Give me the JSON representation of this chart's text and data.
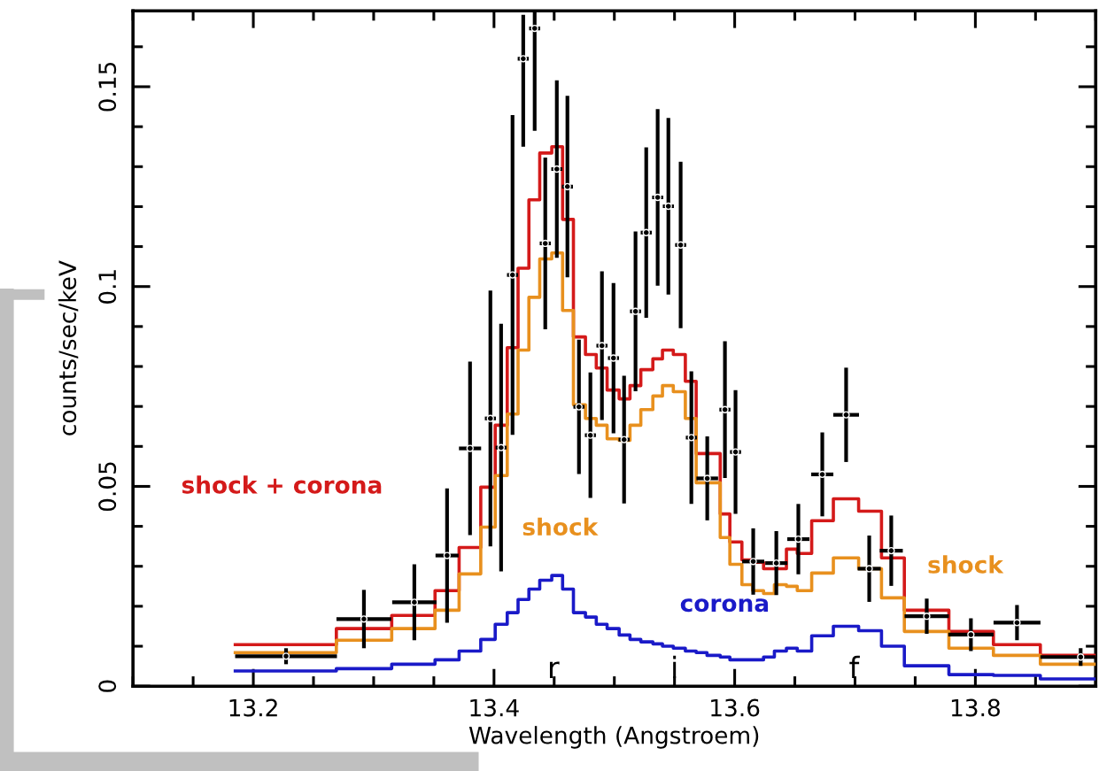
{
  "chart_data": {
    "type": "step",
    "xlabel": "Wavelength (Angstroem)",
    "ylabel": "counts/sec/keV",
    "xlim": [
      13.1,
      13.9
    ],
    "ylim": [
      0,
      0.169
    ],
    "xticks": [
      13.2,
      13.4,
      13.6,
      13.8
    ],
    "yticks": [
      0,
      0.05,
      0.1,
      0.15
    ],
    "grid": false,
    "legend": false,
    "line_style": "solid",
    "marker": "none",
    "series": [
      {
        "name": "shock + corona",
        "color": "#d41a1a",
        "x": [
          13.185,
          13.269,
          13.315,
          13.351,
          13.371,
          13.389,
          13.401,
          13.411,
          13.42,
          13.429,
          13.438,
          13.448,
          13.457,
          13.466,
          13.476,
          13.485,
          13.494,
          13.504,
          13.513,
          13.522,
          13.532,
          13.54,
          13.549,
          13.559,
          13.568,
          13.577,
          13.588,
          13.596,
          13.606,
          13.615,
          13.624,
          13.633,
          13.643,
          13.652,
          13.664,
          13.682,
          13.703,
          13.722,
          13.741,
          13.778,
          13.815,
          13.854,
          13.9
        ],
        "values": [
          0.0104,
          0.0144,
          0.0177,
          0.0239,
          0.0347,
          0.0498,
          0.0653,
          0.0847,
          0.1046,
          0.1217,
          0.1334,
          0.135,
          0.1168,
          0.0874,
          0.083,
          0.0796,
          0.0741,
          0.0719,
          0.0752,
          0.0792,
          0.0819,
          0.0841,
          0.083,
          0.0763,
          0.0582,
          0.0582,
          0.0431,
          0.0361,
          0.0316,
          0.031,
          0.0294,
          0.0294,
          0.0343,
          0.0332,
          0.0414,
          0.0469,
          0.0438,
          0.0321,
          0.019,
          0.0137,
          0.0104,
          0.0077,
          0.0077
        ]
      },
      {
        "name": "shock",
        "color": "#e8901e",
        "x": [
          13.185,
          13.269,
          13.315,
          13.351,
          13.371,
          13.389,
          13.401,
          13.411,
          13.42,
          13.429,
          13.438,
          13.448,
          13.457,
          13.466,
          13.476,
          13.485,
          13.494,
          13.504,
          13.513,
          13.522,
          13.532,
          13.54,
          13.549,
          13.559,
          13.568,
          13.577,
          13.588,
          13.596,
          13.606,
          13.615,
          13.624,
          13.633,
          13.643,
          13.652,
          13.664,
          13.682,
          13.703,
          13.722,
          13.741,
          13.778,
          13.815,
          13.854,
          13.9
        ],
        "values": [
          0.0084,
          0.0115,
          0.0144,
          0.019,
          0.0281,
          0.0398,
          0.0527,
          0.0681,
          0.0841,
          0.0973,
          0.1069,
          0.1084,
          0.094,
          0.0704,
          0.067,
          0.0653,
          0.0619,
          0.0615,
          0.0653,
          0.0692,
          0.0726,
          0.0752,
          0.0737,
          0.067,
          0.0509,
          0.0509,
          0.0372,
          0.0305,
          0.0254,
          0.0239,
          0.0232,
          0.0254,
          0.025,
          0.0239,
          0.0283,
          0.0321,
          0.0294,
          0.0221,
          0.0137,
          0.0095,
          0.0077,
          0.0055,
          0.0055
        ]
      },
      {
        "name": "corona",
        "color": "#1a1ac8",
        "x": [
          13.185,
          13.269,
          13.315,
          13.351,
          13.371,
          13.389,
          13.401,
          13.411,
          13.42,
          13.429,
          13.438,
          13.448,
          13.457,
          13.466,
          13.476,
          13.485,
          13.494,
          13.504,
          13.513,
          13.522,
          13.532,
          13.54,
          13.549,
          13.559,
          13.568,
          13.577,
          13.588,
          13.596,
          13.606,
          13.615,
          13.624,
          13.633,
          13.643,
          13.652,
          13.664,
          13.682,
          13.703,
          13.722,
          13.741,
          13.778,
          13.815,
          13.854,
          13.9
        ],
        "values": [
          0.0038,
          0.0044,
          0.0055,
          0.0066,
          0.0088,
          0.0117,
          0.0155,
          0.0184,
          0.0217,
          0.0243,
          0.0265,
          0.0277,
          0.0243,
          0.0184,
          0.0173,
          0.0155,
          0.0144,
          0.0128,
          0.0117,
          0.0111,
          0.0106,
          0.01,
          0.0095,
          0.0088,
          0.0084,
          0.0077,
          0.0073,
          0.0066,
          0.0066,
          0.0066,
          0.0073,
          0.0088,
          0.0095,
          0.0088,
          0.0126,
          0.015,
          0.0139,
          0.01,
          0.0051,
          0.0029,
          0.0027,
          0.0018,
          0.0018
        ]
      },
      {
        "color": "#000000",
        "type": "scatter",
        "x": [
          13.2272,
          13.2919,
          13.3338,
          13.361,
          13.3801,
          13.397,
          13.4059,
          13.4154,
          13.4243,
          13.4338,
          13.4426,
          13.4522,
          13.461,
          13.4706,
          13.4801,
          13.4897,
          13.4993,
          13.5081,
          13.5176,
          13.5265,
          13.536,
          13.5449,
          13.5551,
          13.564,
          13.5772,
          13.5919,
          13.6007,
          13.6154,
          13.6346,
          13.6529,
          13.6728,
          13.6926,
          13.7118,
          13.7301,
          13.7596,
          13.7963,
          13.8346,
          13.8875
        ],
        "values": [
          0.0075,
          0.0168,
          0.021,
          0.0327,
          0.0595,
          0.067,
          0.0597,
          0.1029,
          0.157,
          0.1646,
          0.1108,
          0.1294,
          0.125,
          0.0699,
          0.0628,
          0.0852,
          0.0821,
          0.0617,
          0.0938,
          0.1135,
          0.1223,
          0.1201,
          0.1104,
          0.0622,
          0.052,
          0.0692,
          0.0586,
          0.0312,
          0.0308,
          0.0368,
          0.053,
          0.0679,
          0.0294,
          0.0339,
          0.0175,
          0.0129,
          0.0159,
          0.0073
        ],
        "errors": [
          0.002,
          0.0073,
          0.0095,
          0.0168,
          0.0217,
          0.032,
          0.031,
          0.04,
          [
            0.135,
            0.168
          ],
          [
            0.139,
            0.1686
          ],
          0.0215,
          0.0222,
          0.0227,
          0.0168,
          0.0157,
          0.0186,
          0.0188,
          0.016,
          0.02,
          0.0213,
          0.0221,
          0.0221,
          0.0208,
          0.0166,
          0.0105,
          0.0171,
          0.0155,
          0.0083,
          0.008,
          0.0088,
          0.0105,
          0.0118,
          0.0083,
          0.0088,
          0.0044,
          0.0041,
          0.0044,
          0.0022
        ],
        "xerrors": [
          0.0423,
          0.0228,
          0.0184,
          0.0096,
          0.0092,
          0.0046,
          0.0046,
          0.0046,
          0.0046,
          0.0046,
          0.0046,
          0.0046,
          0.0046,
          0.0046,
          0.0046,
          0.0046,
          0.0046,
          0.0046,
          0.0046,
          0.0046,
          0.0046,
          0.0046,
          0.0046,
          0.0046,
          0.009,
          0.0046,
          0.0046,
          0.0092,
          0.0092,
          0.0092,
          0.0092,
          0.0107,
          0.0096,
          0.0096,
          0.0184,
          0.0188,
          0.0195,
          [
            13.854,
            13.9
          ]
        ]
      }
    ],
    "annotations": [
      "shock",
      "r",
      "i",
      "f"
    ]
  }
}
